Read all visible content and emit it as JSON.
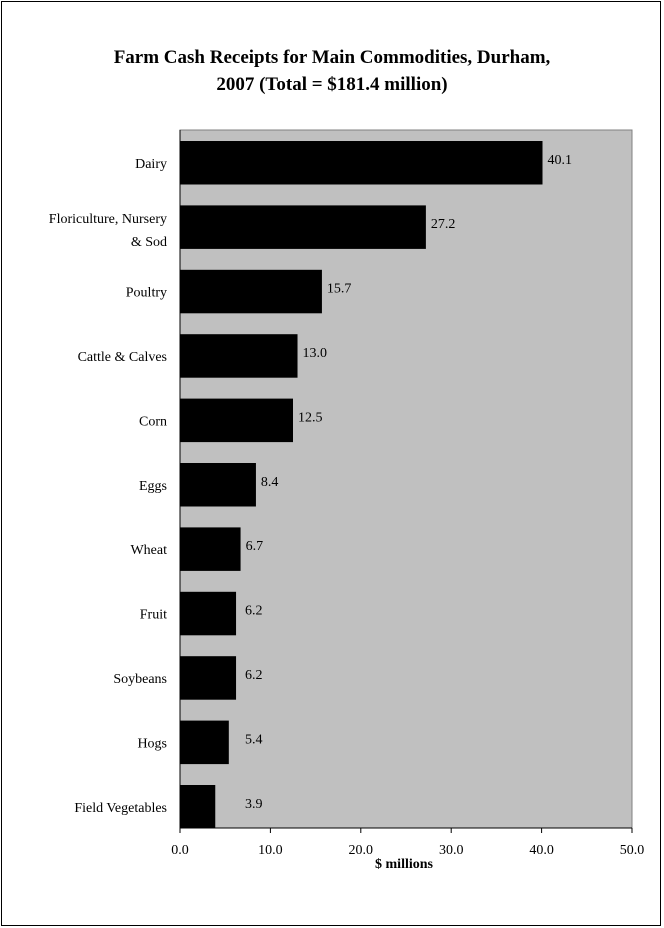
{
  "chart_data": {
    "type": "bar",
    "orientation": "horizontal",
    "title_line1": "Farm Cash Receipts for Main Commodities, Durham,",
    "title_line2": "2007 (Total = $181.4 million)",
    "categories": [
      [
        "Dairy"
      ],
      [
        "Floriculture, Nursery",
        "& Sod"
      ],
      [
        "Poultry"
      ],
      [
        "Cattle & Calves"
      ],
      [
        "Corn"
      ],
      [
        "Eggs"
      ],
      [
        "Wheat"
      ],
      [
        "Fruit"
      ],
      [
        "Soybeans"
      ],
      [
        "Hogs"
      ],
      [
        "Field Vegetables"
      ]
    ],
    "values": [
      40.1,
      27.2,
      15.7,
      13.0,
      12.5,
      8.4,
      6.7,
      6.2,
      6.2,
      5.4,
      3.9
    ],
    "data_labels": [
      "40.1",
      "27.2",
      "15.7",
      "13.0",
      "12.5",
      "8.4",
      "6.7",
      "6.2",
      "6.2",
      "5.4",
      "3.9"
    ],
    "xlabel": "$ millions",
    "ylabel": "",
    "xlim": [
      0,
      50
    ],
    "xticks": [
      "0.0",
      "10.0",
      "20.0",
      "30.0",
      "40.0",
      "50.0"
    ],
    "bar_color": "#000000",
    "plot_background": "#c0c0c0",
    "grid": false,
    "legend": "none"
  }
}
